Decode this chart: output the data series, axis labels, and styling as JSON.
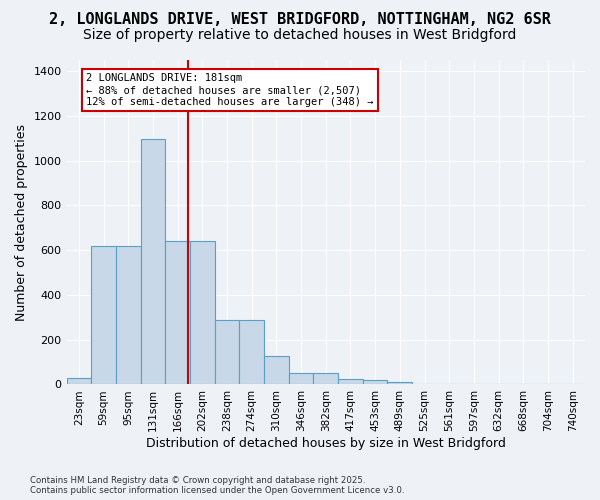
{
  "title_line1": "2, LONGLANDS DRIVE, WEST BRIDGFORD, NOTTINGHAM, NG2 6SR",
  "title_line2": "Size of property relative to detached houses in West Bridgford",
  "xlabel": "Distribution of detached houses by size in West Bridgford",
  "ylabel": "Number of detached properties",
  "footnote": "Contains HM Land Registry data © Crown copyright and database right 2025.\nContains public sector information licensed under the Open Government Licence v3.0.",
  "bin_labels": [
    "23sqm",
    "59sqm",
    "95sqm",
    "131sqm",
    "166sqm",
    "202sqm",
    "238sqm",
    "274sqm",
    "310sqm",
    "346sqm",
    "382sqm",
    "417sqm",
    "453sqm",
    "489sqm",
    "525sqm",
    "561sqm",
    "597sqm",
    "632sqm",
    "668sqm",
    "704sqm",
    "740sqm"
  ],
  "bar_heights": [
    30,
    620,
    620,
    1095,
    640,
    640,
    290,
    290,
    125,
    50,
    50,
    25,
    20,
    10,
    0,
    0,
    0,
    0,
    0,
    0,
    0
  ],
  "bar_color": "#c8d8e8",
  "bar_edge_color": "#5a9fc8",
  "vline_color": "#cc0000",
  "annotation_text": "2 LONGLANDS DRIVE: 181sqm\n← 88% of detached houses are smaller (2,507)\n12% of semi-detached houses are larger (348) →",
  "annotation_box_facecolor": "#ffffff",
  "annotation_box_edgecolor": "#cc0000",
  "ylim": [
    0,
    1450
  ],
  "yticks": [
    0,
    200,
    400,
    600,
    800,
    1000,
    1200,
    1400
  ],
  "bg_color": "#eef2f7",
  "grid_color": "#ffffff",
  "title_fontsize": 11,
  "subtitle_fontsize": 10,
  "axis_fontsize": 9,
  "tick_fontsize": 7.5
}
